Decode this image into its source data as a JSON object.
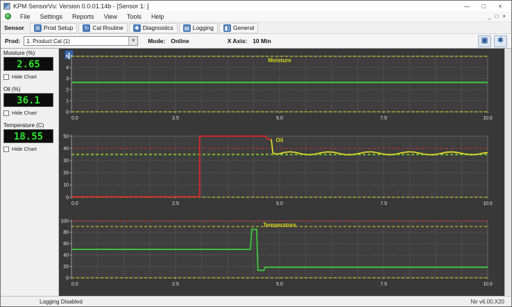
{
  "window": {
    "title": "KPM SensorVu: Version 0.0.01.14b - [Sensor 1:      ]"
  },
  "icons": {
    "minimize": "—",
    "maximize": "□",
    "close": "×",
    "mdi_minimize": "_",
    "mdi_restore": "□",
    "mdi_close": "×",
    "prod_setup": "⊞",
    "cal_routine": "↻",
    "diagnostics": "✱",
    "logging": "▤",
    "general": "◧",
    "chart_view": "▣",
    "settings_gears": "✱",
    "dropdown_arrow": "▼"
  },
  "menu": {
    "items": [
      "File",
      "Settings",
      "Reports",
      "View",
      "Tools",
      "Help"
    ]
  },
  "toolbar": {
    "label": "Sensor",
    "buttons": [
      "Prod Setup",
      "Cal Routine",
      "Diagnostics",
      "Logging",
      "General"
    ]
  },
  "control_bar": {
    "prod_label": "Prod:",
    "prod_value": "1. Product Cal (1)",
    "mode_label": "Mode:",
    "mode_value": "Online",
    "xaxis_label": "X Axis:",
    "xaxis_value": "10 Min"
  },
  "readouts": [
    {
      "label": "Moisture (%)",
      "value": "2.65",
      "checkbox": "Hide Chart"
    },
    {
      "label": "Oil (%)",
      "value": "36.1",
      "checkbox": "Hide Chart"
    },
    {
      "label": "Temperature (C)",
      "value": "18.55",
      "checkbox": "Hide Chart"
    }
  ],
  "status_bar": {
    "left": "Logging Disabled",
    "right": "Nir v6.00.X20"
  },
  "colors": {
    "lcd_green": "#2ee52e",
    "chart_bg": "#383838",
    "plot_bg": "#3e3e3e",
    "accent_blue": "#3a67a8"
  },
  "chart_data": [
    {
      "type": "line",
      "title": "Moisture",
      "xlim": [
        0,
        10
      ],
      "ylim": [
        0,
        5
      ],
      "xticks": [
        "0.0",
        "2.5",
        "5.0",
        "7.5",
        "10.0"
      ],
      "yticks": [
        0,
        1,
        2,
        3,
        4,
        5
      ],
      "grid_y": [
        1,
        2,
        3,
        4
      ],
      "grid": true,
      "legend": "none",
      "limit_lines": [
        {
          "y": 5,
          "color": "#c9c92a"
        },
        {
          "y": 0,
          "color": "#c9c92a"
        }
      ],
      "series": [
        {
          "name": "moisture",
          "color": "#3fbf3f",
          "width": 2.2,
          "points": [
            [
              0,
              2.65
            ],
            [
              10,
              2.65
            ]
          ]
        }
      ]
    },
    {
      "type": "line",
      "title": "Oil",
      "xlim": [
        0,
        10
      ],
      "ylim": [
        0,
        50
      ],
      "xticks": [
        "0.0",
        "2.5",
        "5.0",
        "7.5",
        "10.0"
      ],
      "yticks": [
        0,
        10,
        20,
        30,
        40,
        50
      ],
      "grid_y": [
        10,
        20,
        30
      ],
      "grid": true,
      "legend": "none",
      "limit_lines": [
        {
          "y": 40,
          "color": "#c03030"
        },
        {
          "y": 35.2,
          "color": "#c9c92a"
        },
        {
          "y": 34.5,
          "color": "#2fa52f"
        },
        {
          "y": 0,
          "color": "#c9c92a"
        }
      ],
      "series": [
        {
          "name": "oil-alarm",
          "color": "#cc2a2a",
          "width": 2,
          "points": [
            [
              0,
              0.4
            ],
            [
              3.08,
              0.4
            ],
            [
              3.08,
              50
            ],
            [
              4.66,
              50
            ],
            [
              4.7,
              47.5
            ],
            [
              4.8,
              47.5
            ]
          ]
        },
        {
          "name": "oil",
          "color": "#d9d92a",
          "width": 1.8,
          "points": [
            [
              4.8,
              47.5
            ],
            [
              4.84,
              36.2
            ],
            [
              4.9,
              35.4
            ],
            [
              5.0,
              35.6
            ],
            [
              5.1,
              36.6
            ],
            [
              5.25,
              37.2
            ],
            [
              5.4,
              36.6
            ],
            [
              5.55,
              35.3
            ],
            [
              5.7,
              34.8
            ],
            [
              5.85,
              35.2
            ],
            [
              6.0,
              36.4
            ],
            [
              6.15,
              37.1
            ],
            [
              6.3,
              36.9
            ],
            [
              6.45,
              35.6
            ],
            [
              6.6,
              34.8
            ],
            [
              6.75,
              34.9
            ],
            [
              6.9,
              35.8
            ],
            [
              7.05,
              36.9
            ],
            [
              7.2,
              37.2
            ],
            [
              7.35,
              36.4
            ],
            [
              7.5,
              35.2
            ],
            [
              7.65,
              34.8
            ],
            [
              7.8,
              35.3
            ],
            [
              7.95,
              36.5
            ],
            [
              8.1,
              37.2
            ],
            [
              8.25,
              36.9
            ],
            [
              8.4,
              35.8
            ],
            [
              8.55,
              34.9
            ],
            [
              8.7,
              34.8
            ],
            [
              8.85,
              35.6
            ],
            [
              9.0,
              36.8
            ],
            [
              9.15,
              37.1
            ],
            [
              9.3,
              36.5
            ],
            [
              9.45,
              35.4
            ],
            [
              9.6,
              34.8
            ],
            [
              9.75,
              35.1
            ],
            [
              9.9,
              36.2
            ],
            [
              10,
              36.6
            ]
          ]
        }
      ]
    },
    {
      "type": "line",
      "title": "Temperature",
      "xlim": [
        0,
        10
      ],
      "ylim": [
        0,
        100
      ],
      "xticks": [
        "0.0",
        "2.5",
        "5.0",
        "7.5",
        "10.0"
      ],
      "yticks": [
        0,
        20,
        40,
        60,
        80,
        100
      ],
      "grid_y": [
        20,
        40,
        60,
        80
      ],
      "grid": true,
      "legend": "none",
      "limit_lines": [
        {
          "y": 100,
          "color": "#c03030"
        },
        {
          "y": 90,
          "color": "#c9c92a"
        },
        {
          "y": 0,
          "color": "#c9c92a"
        }
      ],
      "series": [
        {
          "name": "temperature",
          "color": "#3fbf3f",
          "width": 2,
          "points": [
            [
              0,
              50
            ],
            [
              4.3,
              50
            ],
            [
              4.33,
              85
            ],
            [
              4.45,
              85
            ],
            [
              4.48,
              13
            ],
            [
              4.62,
              13
            ],
            [
              4.65,
              18.5
            ],
            [
              10,
              18.5
            ]
          ]
        }
      ]
    }
  ]
}
